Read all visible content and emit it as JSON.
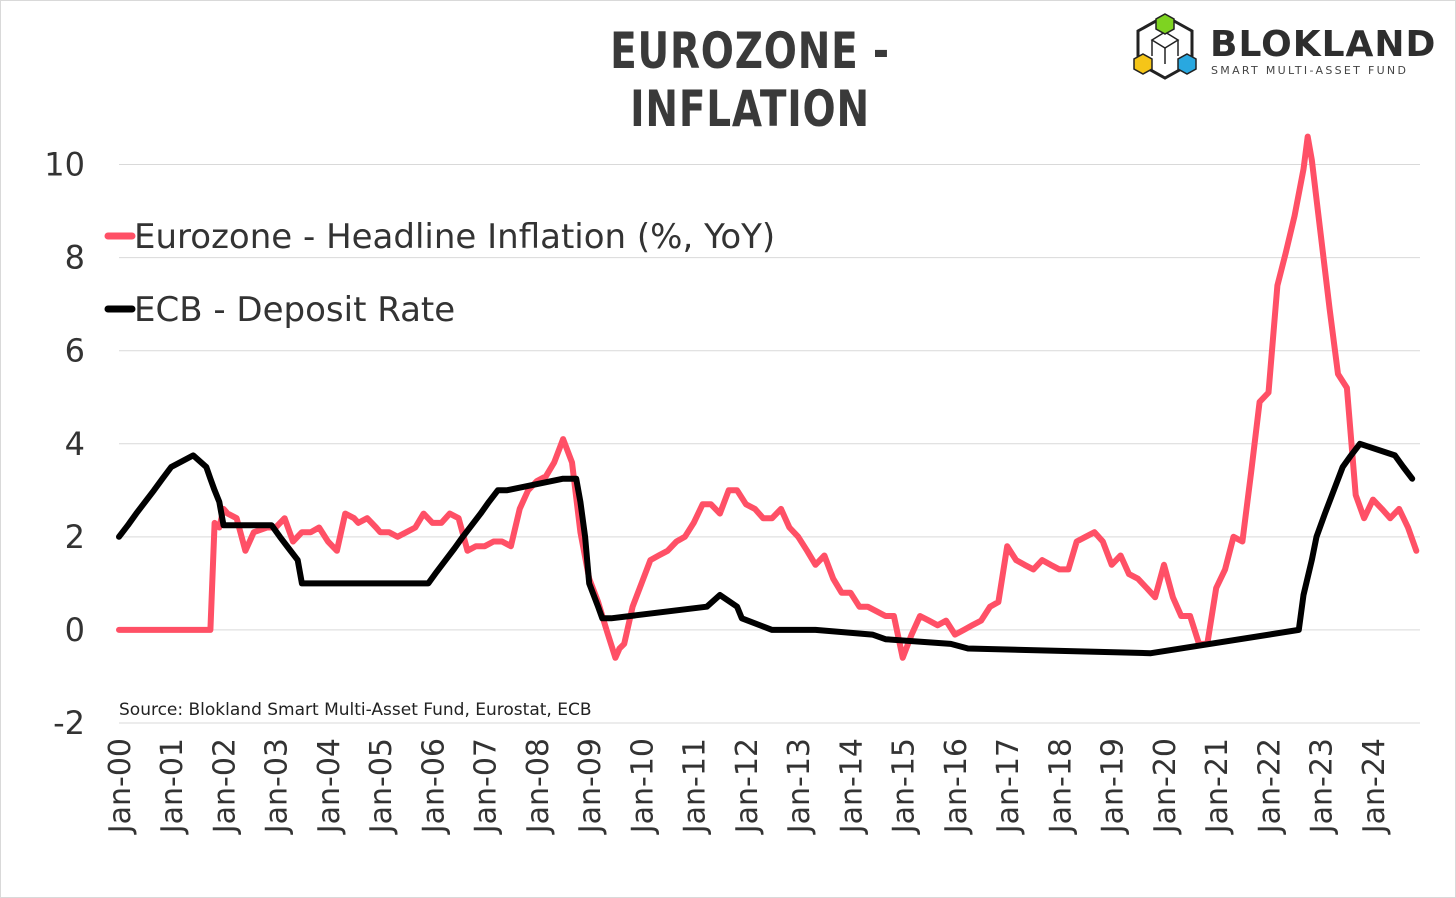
{
  "header": {
    "title": "EUROZONE - INFLATION",
    "brand_name": "BLOKLAND",
    "brand_tagline": "SMART MULTI-ASSET FUND"
  },
  "colors": {
    "inflation": "#ff5066",
    "deposit": "#000000",
    "grid": "#d9d9d9",
    "text": "#333333"
  },
  "chart_data": {
    "type": "line",
    "title": "EUROZONE - INFLATION",
    "xlabel": "",
    "ylabel": "",
    "ylim": [
      -2,
      11
    ],
    "yticks": [
      -2,
      0,
      2,
      4,
      6,
      8,
      10
    ],
    "xlim": [
      2000.0,
      2024.9
    ],
    "x_tick_labels": [
      "Jan-00",
      "Jan-01",
      "Jan-02",
      "Jan-03",
      "Jan-04",
      "Jan-05",
      "Jan-06",
      "Jan-07",
      "Jan-08",
      "Jan-09",
      "Jan-10",
      "Jan-11",
      "Jan-12",
      "Jan-13",
      "Jan-14",
      "Jan-15",
      "Jan-16",
      "Jan-17",
      "Jan-18",
      "Jan-19",
      "Jan-20",
      "Jan-21",
      "Jan-22",
      "Jan-23",
      "Jan-24"
    ],
    "grid": true,
    "legend_position": "top-left",
    "source": "Source: Blokland Smart Multi-Asset Fund, Eurostat, ECB",
    "series": [
      {
        "name": "Eurozone - Headline Inflation (%, YoY)",
        "x": [
          2000.0,
          2001.75,
          2001.83,
          2001.92,
          2002.0,
          2002.08,
          2002.25,
          2002.42,
          2002.58,
          2002.83,
          2003.0,
          2003.17,
          2003.33,
          2003.5,
          2003.67,
          2003.83,
          2004.0,
          2004.17,
          2004.33,
          2004.5,
          2004.58,
          2004.75,
          2004.92,
          2005.0,
          2005.17,
          2005.33,
          2005.5,
          2005.67,
          2005.83,
          2006.0,
          2006.17,
          2006.33,
          2006.5,
          2006.67,
          2006.83,
          2007.0,
          2007.17,
          2007.33,
          2007.5,
          2007.67,
          2007.83,
          2008.0,
          2008.17,
          2008.33,
          2008.5,
          2008.67,
          2008.83,
          2009.0,
          2009.17,
          2009.33,
          2009.5,
          2009.58,
          2009.67,
          2009.83,
          2010.0,
          2010.17,
          2010.33,
          2010.5,
          2010.67,
          2010.83,
          2011.0,
          2011.17,
          2011.33,
          2011.5,
          2011.67,
          2011.83,
          2012.0,
          2012.17,
          2012.33,
          2012.5,
          2012.67,
          2012.83,
          2013.0,
          2013.17,
          2013.33,
          2013.5,
          2013.67,
          2013.83,
          2014.0,
          2014.17,
          2014.33,
          2014.5,
          2014.67,
          2014.83,
          2015.0,
          2015.17,
          2015.33,
          2015.5,
          2015.67,
          2015.83,
          2016.0,
          2016.17,
          2016.33,
          2016.5,
          2016.67,
          2016.83,
          2017.0,
          2017.17,
          2017.33,
          2017.5,
          2017.67,
          2017.83,
          2018.0,
          2018.17,
          2018.33,
          2018.5,
          2018.67,
          2018.83,
          2019.0,
          2019.17,
          2019.33,
          2019.5,
          2019.67,
          2019.83,
          2020.0,
          2020.17,
          2020.33,
          2020.5,
          2020.67,
          2020.83,
          2021.0,
          2021.17,
          2021.33,
          2021.5,
          2021.67,
          2021.83,
          2022.0,
          2022.17,
          2022.33,
          2022.5,
          2022.67,
          2022.75,
          2022.83,
          2023.0,
          2023.17,
          2023.33,
          2023.5,
          2023.67,
          2023.83,
          2024.0,
          2024.17,
          2024.33,
          2024.5,
          2024.67,
          2024.83
        ],
        "values": [
          0.0,
          0.0,
          2.3,
          2.2,
          2.6,
          2.5,
          2.4,
          1.7,
          2.1,
          2.2,
          2.2,
          2.4,
          1.9,
          2.1,
          2.1,
          2.2,
          1.9,
          1.7,
          2.5,
          2.4,
          2.3,
          2.4,
          2.2,
          2.1,
          2.1,
          2.0,
          2.1,
          2.2,
          2.5,
          2.3,
          2.3,
          2.5,
          2.4,
          1.7,
          1.8,
          1.8,
          1.9,
          1.9,
          1.8,
          2.6,
          3.0,
          3.2,
          3.3,
          3.6,
          4.1,
          3.6,
          2.1,
          1.1,
          0.6,
          0.0,
          -0.6,
          -0.4,
          -0.3,
          0.5,
          1.0,
          1.5,
          1.6,
          1.7,
          1.9,
          2.0,
          2.3,
          2.7,
          2.7,
          2.5,
          3.0,
          3.0,
          2.7,
          2.6,
          2.4,
          2.4,
          2.6,
          2.2,
          2.0,
          1.7,
          1.4,
          1.6,
          1.1,
          0.8,
          0.8,
          0.5,
          0.5,
          0.4,
          0.3,
          0.3,
          -0.6,
          -0.1,
          0.3,
          0.2,
          0.1,
          0.2,
          -0.1,
          0.0,
          0.1,
          0.2,
          0.5,
          0.6,
          1.8,
          1.5,
          1.4,
          1.3,
          1.5,
          1.4,
          1.3,
          1.3,
          1.9,
          2.0,
          2.1,
          1.9,
          1.4,
          1.6,
          1.2,
          1.1,
          0.9,
          0.7,
          1.4,
          0.7,
          0.3,
          0.3,
          -0.3,
          -0.3,
          0.9,
          1.3,
          2.0,
          1.9,
          3.4,
          4.9,
          5.1,
          7.4,
          8.1,
          8.9,
          9.9,
          10.6,
          10.1,
          8.5,
          6.9,
          5.5,
          5.2,
          2.9,
          2.4,
          2.8,
          2.6,
          2.4,
          2.6,
          2.2,
          1.7
        ]
      },
      {
        "name": "ECB - Deposit Rate",
        "x": [
          2000.0,
          2000.17,
          2000.33,
          2000.5,
          2000.67,
          2000.83,
          2001.0,
          2001.42,
          2001.67,
          2001.75,
          2001.83,
          2001.92,
          2002.0,
          2002.92,
          2003.08,
          2003.25,
          2003.42,
          2003.5,
          2005.92,
          2006.08,
          2006.25,
          2006.42,
          2006.58,
          2006.75,
          2006.92,
          2007.08,
          2007.25,
          2007.42,
          2008.5,
          2008.75,
          2008.83,
          2008.92,
          2009.0,
          2009.17,
          2009.25,
          2009.33,
          2009.42,
          2011.25,
          2011.5,
          2011.83,
          2011.92,
          2012.5,
          2013.33,
          2014.42,
          2014.67,
          2015.92,
          2016.25,
          2019.75,
          2022.58,
          2022.67,
          2022.83,
          2022.92,
          2023.08,
          2023.25,
          2023.42,
          2023.58,
          2023.75,
          2024.42,
          2024.58,
          2024.75
        ],
        "values": [
          2.0,
          2.25,
          2.5,
          2.75,
          3.0,
          3.25,
          3.5,
          3.75,
          3.5,
          3.25,
          3.0,
          2.75,
          2.25,
          2.25,
          2.0,
          1.75,
          1.5,
          1.0,
          1.0,
          1.25,
          1.5,
          1.75,
          2.0,
          2.25,
          2.5,
          2.75,
          3.0,
          3.0,
          3.25,
          3.25,
          2.75,
          2.0,
          1.0,
          0.5,
          0.25,
          0.25,
          0.25,
          0.5,
          0.75,
          0.5,
          0.25,
          0.0,
          0.0,
          -0.1,
          -0.2,
          -0.3,
          -0.4,
          -0.5,
          0.0,
          0.75,
          1.5,
          2.0,
          2.5,
          3.0,
          3.5,
          3.75,
          4.0,
          3.75,
          3.5,
          3.25
        ]
      }
    ]
  }
}
